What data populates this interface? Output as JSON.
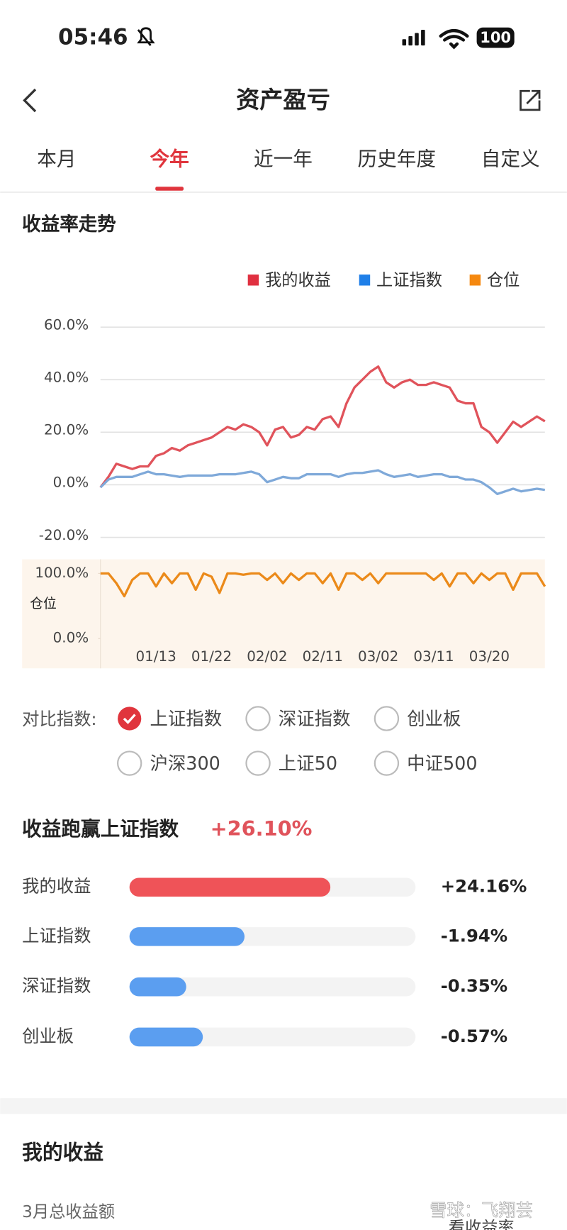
{
  "status": {
    "time": "05:46",
    "battery": "100"
  },
  "header": {
    "title": "资产盈亏"
  },
  "tabs": [
    {
      "label": "本月",
      "selected": false
    },
    {
      "label": "今年",
      "selected": true
    },
    {
      "label": "近一年",
      "selected": false
    },
    {
      "label": "历史年度",
      "selected": false
    },
    {
      "label": "自定义",
      "selected": false
    }
  ],
  "section_title": "收益率走势",
  "chart_data": {
    "type": "line",
    "categories": [
      null,
      null,
      null,
      null,
      null,
      null,
      null,
      "01/13",
      null,
      null,
      null,
      null,
      null,
      null,
      "01/22",
      null,
      null,
      null,
      null,
      null,
      null,
      "02/02",
      null,
      null,
      null,
      null,
      null,
      null,
      "02/11",
      null,
      null,
      null,
      null,
      null,
      null,
      "03/02",
      null,
      null,
      null,
      null,
      null,
      null,
      "03/11",
      null,
      null,
      null,
      null,
      null,
      null,
      "03/20",
      null,
      null,
      null,
      null,
      null,
      null,
      null
    ],
    "series": [
      {
        "name": "我的收益",
        "color": "#e0535b",
        "values": [
          -1,
          3,
          8,
          7,
          6,
          7,
          7,
          11,
          12,
          14,
          13,
          15,
          16,
          17,
          18,
          20,
          22,
          21,
          23,
          22,
          20,
          15,
          21,
          22,
          18,
          19,
          22,
          21,
          25,
          26,
          22,
          31,
          37,
          40,
          43,
          45,
          39,
          37,
          39,
          40,
          38,
          38,
          39,
          38,
          37,
          32,
          31,
          31,
          22,
          20,
          16,
          20,
          24,
          22,
          24,
          26,
          24.16
        ]
      },
      {
        "name": "上证指数",
        "color": "#7fa9d9",
        "values": [
          -1,
          2,
          3,
          3,
          3,
          4,
          5,
          4,
          4,
          3.5,
          3,
          3.5,
          3.5,
          3.5,
          3.5,
          4,
          4,
          4,
          4.5,
          5,
          4,
          1,
          2,
          3,
          2.5,
          2.5,
          4,
          4,
          4,
          4,
          3,
          4,
          4.5,
          4.5,
          5,
          5.5,
          4,
          3,
          3.5,
          4,
          3,
          3.5,
          4,
          4,
          3,
          3,
          2,
          2,
          1,
          -1,
          -3.5,
          -2.5,
          -1.5,
          -2.5,
          -2,
          -1.5,
          -1.94
        ]
      },
      {
        "name": "仓位",
        "color": "#eb8a1a",
        "axis": "y2",
        "values": [
          100,
          100,
          85,
          65,
          90,
          100,
          100,
          80,
          100,
          85,
          100,
          100,
          75,
          100,
          95,
          70,
          100,
          100,
          98,
          100,
          100,
          90,
          100,
          85,
          100,
          90,
          100,
          100,
          85,
          100,
          75,
          100,
          100,
          90,
          100,
          85,
          100,
          100,
          100,
          100,
          100,
          100,
          90,
          100,
          80,
          100,
          100,
          85,
          100,
          90,
          100,
          100,
          75,
          100,
          100,
          100,
          80
        ]
      }
    ],
    "legend_colors": [
      "#e03040",
      "#1f7fe8",
      "#f5880f"
    ],
    "ylim": [
      -20,
      60
    ],
    "yticks": [
      {
        "value": -20,
        "label": "-20.0%"
      },
      {
        "value": 0,
        "label": "0.0%"
      },
      {
        "value": 20,
        "label": "20.0%"
      },
      {
        "value": 40,
        "label": "40.0%"
      },
      {
        "value": 60,
        "label": "60.0%"
      }
    ],
    "y2lim": [
      0,
      100
    ],
    "y2ticks": [
      {
        "value": 0,
        "label": "0.0%"
      },
      {
        "value": 100,
        "label": "100.0%"
      }
    ],
    "y2label": "仓位",
    "grid": true,
    "legend": "top-right"
  },
  "compare": {
    "label": "对比指数:",
    "options": [
      {
        "label": "上证指数",
        "checked": true
      },
      {
        "label": "深证指数",
        "checked": false
      },
      {
        "label": "创业板",
        "checked": false
      },
      {
        "label": "沪深300",
        "checked": false
      },
      {
        "label": "上证50",
        "checked": false
      },
      {
        "label": "中证500",
        "checked": false
      }
    ]
  },
  "outperform": {
    "title": "收益跑赢上证指数",
    "value": "+26.10%"
  },
  "bars": [
    {
      "name": "我的收益",
      "value": 24.16,
      "value_label": "+24.16%",
      "color": "#ef5358"
    },
    {
      "name": "上证指数",
      "value": -1.94,
      "value_label": "-1.94%",
      "color": "#5b9ef0"
    },
    {
      "name": "深证指数",
      "value": -0.35,
      "value_label": "-0.35%",
      "color": "#5b9ef0"
    },
    {
      "name": "创业板",
      "value": -0.57,
      "value_label": "-0.57%",
      "color": "#5b9ef0"
    }
  ],
  "income": {
    "title": "我的收益",
    "subtitle": "3月总收益额",
    "link": "看收益率"
  },
  "watermark": "雪球：飞翔芸"
}
